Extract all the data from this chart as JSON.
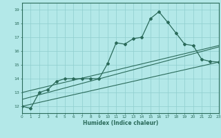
{
  "title": "",
  "xlabel": "Humidex (Indice chaleur)",
  "background_color": "#b3e8e8",
  "grid_color": "#8ecece",
  "line_color": "#2a6a5a",
  "xmin": 0,
  "xmax": 23,
  "ymin": 11.5,
  "ymax": 19.5,
  "yticks": [
    12,
    13,
    14,
    15,
    16,
    17,
    18,
    19
  ],
  "xticks": [
    0,
    1,
    2,
    3,
    4,
    5,
    6,
    7,
    8,
    9,
    10,
    11,
    12,
    13,
    14,
    15,
    16,
    17,
    18,
    19,
    20,
    21,
    22,
    23
  ],
  "series1_x": [
    0,
    1,
    2,
    3,
    4,
    5,
    6,
    7,
    8,
    9,
    10,
    11,
    12,
    13,
    14,
    15,
    16,
    17,
    18,
    19,
    20,
    21,
    22,
    23
  ],
  "series1_y": [
    12.0,
    11.85,
    13.0,
    13.2,
    13.8,
    14.0,
    14.0,
    14.0,
    14.0,
    14.0,
    15.1,
    16.6,
    16.5,
    16.9,
    17.0,
    18.35,
    18.85,
    18.1,
    17.3,
    16.5,
    16.4,
    15.4,
    15.25,
    15.2
  ],
  "series2_x": [
    0,
    23
  ],
  "series2_y": [
    12.0,
    15.2
  ],
  "series3_x": [
    0,
    23
  ],
  "series3_y": [
    12.5,
    16.3
  ],
  "series4_x": [
    0,
    23
  ],
  "series4_y": [
    13.0,
    16.4
  ]
}
